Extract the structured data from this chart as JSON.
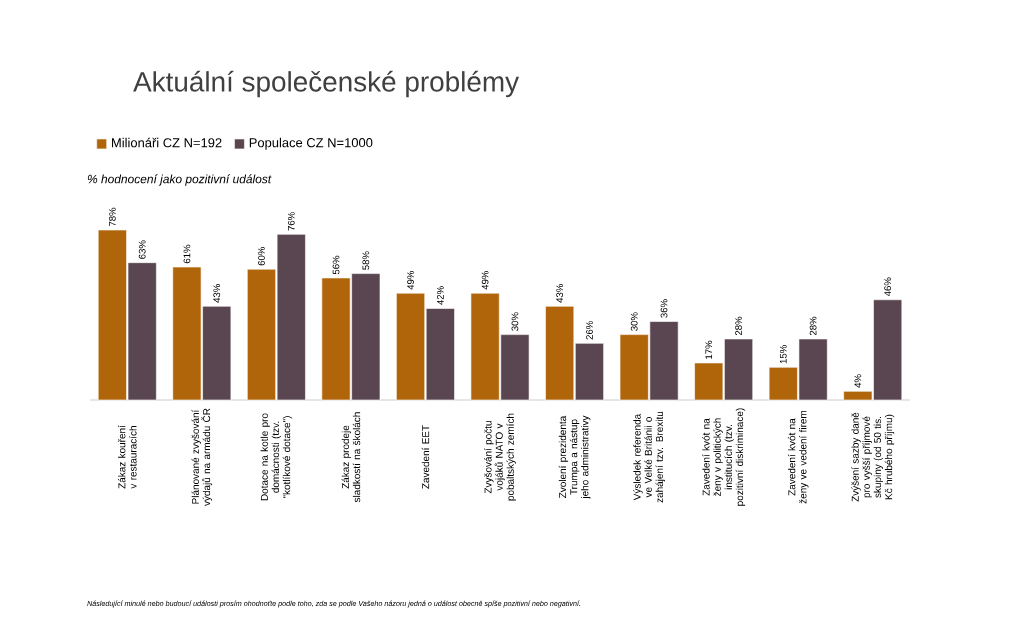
{
  "chart_data": {
    "type": "bar",
    "title": "Aktuální společenské problémy",
    "subtitle": "% hodnocení jako pozitivní událost",
    "categories": [
      "Zákaz kouření v restauracích",
      "Plánované zvyšování výdajů na armádu ČR",
      "Dotace na kotle pro domácnosti (tzv. \"kotlíkové dotace\")",
      "Zákaz prodeje sladkostí na školách",
      "Zavedení EET",
      "Zvyšování počtu vojáků NATO v pobaltských zemích",
      "Zvolení prezidenta Trumpa a nástup jeho administrativy",
      "Výsledek referenda ve Velké Británii o zahájení tzv. Brexitu",
      "Zavedení kvót na ženy v politických institucích (tzv. pozitivní diskriminace)",
      "Zavedení kvót na ženy ve vedení firem",
      "Zvýšení sazby daně pro vyšší příjmové skupiny (od 50 tis. Kč hrubého příjmu)"
    ],
    "series": [
      {
        "name": "Milionáři CZ N=192",
        "color": "#b0650a",
        "values": [
          78,
          61,
          60,
          56,
          49,
          49,
          43,
          30,
          17,
          15,
          4
        ],
        "value_labels": [
          "78%",
          "61%",
          "60%",
          "56%",
          "49%",
          "49%",
          "43%",
          "30%",
          "17%",
          "15%",
          "4%"
        ]
      },
      {
        "name": "Populace CZ N=1000",
        "color": "#5a4650",
        "values": [
          63,
          43,
          76,
          58,
          42,
          30,
          26,
          36,
          28,
          28,
          46
        ],
        "value_labels": [
          "63%",
          "43%",
          "76%",
          "58%",
          "42%",
          "30%",
          "26%",
          "36%",
          "28%",
          "28%",
          "46%"
        ]
      }
    ],
    "tick_labels": "x",
    "legend": "top left",
    "annotations": [
      "Následující minulé nebo budoucí události prosím ohodnoťte podle toho, zda se podle Vašeho názoru jedná o událost obecně spíše pozitivní nebo negativní."
    ]
  }
}
